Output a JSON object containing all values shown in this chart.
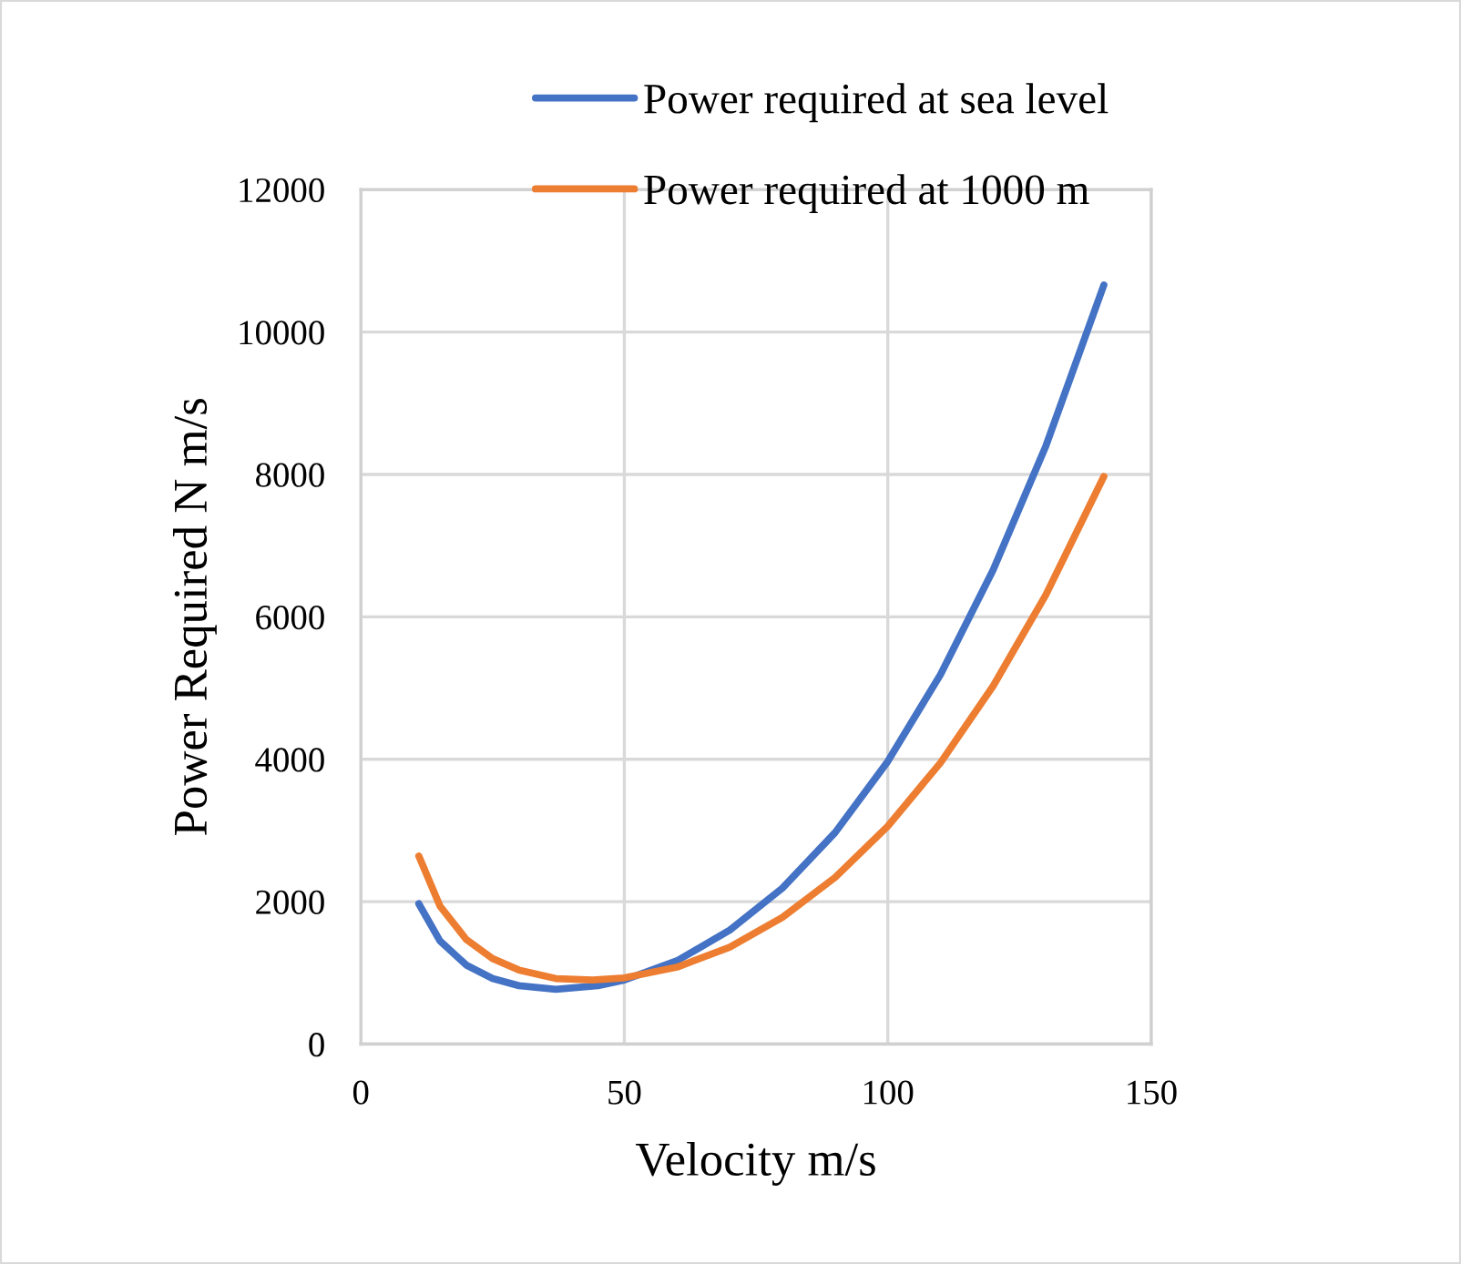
{
  "chart_data": {
    "type": "line",
    "xlabel": "Velocity m/s",
    "ylabel": "Power Required N m/s",
    "xlim": [
      0,
      150
    ],
    "xticks": [
      0,
      50,
      100,
      150
    ],
    "ylim": [
      0,
      12000
    ],
    "yticks": [
      0,
      2000,
      4000,
      6000,
      8000,
      10000,
      12000
    ],
    "grid": true,
    "legend": "top right",
    "marker": "none",
    "line_style": "solid",
    "series": [
      {
        "name": "Power required at sea level",
        "color": "#4472c4",
        "x": [
          11,
          15,
          20,
          25,
          30,
          37,
          45,
          50,
          60,
          70,
          80,
          90,
          100,
          110,
          120,
          130,
          141
        ],
        "values": [
          1970,
          1450,
          1110,
          920,
          820,
          770,
          820,
          900,
          1170,
          1600,
          2190,
          2970,
          3970,
          5190,
          6660,
          8400,
          10660
        ]
      },
      {
        "name": "Power required at 1000 m",
        "color": "#ed7d31",
        "x": [
          11,
          15,
          20,
          25,
          30,
          37,
          44,
          50,
          60,
          70,
          80,
          90,
          100,
          110,
          120,
          130,
          141
        ],
        "values": [
          2640,
          1940,
          1470,
          1200,
          1040,
          920,
          900,
          930,
          1080,
          1360,
          1780,
          2340,
          3060,
          3950,
          5030,
          6310,
          7970
        ]
      }
    ]
  }
}
